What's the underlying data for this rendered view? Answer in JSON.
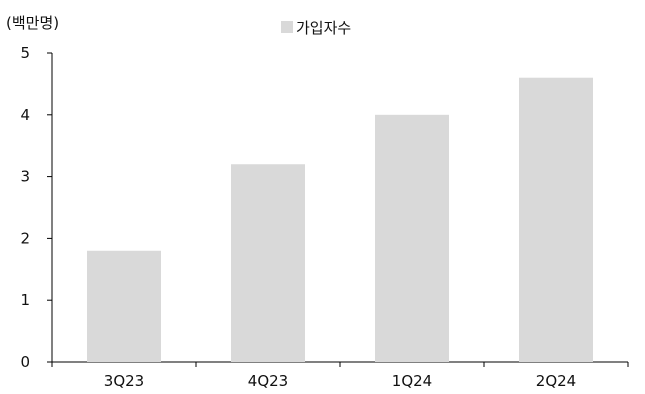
{
  "chart_data": {
    "type": "bar",
    "title": "",
    "xlabel": "",
    "ylabel": "",
    "unit_label": "(백만명)",
    "categories": [
      "3Q23",
      "4Q23",
      "1Q24",
      "2Q24"
    ],
    "series": [
      {
        "name": "가입자수",
        "values": [
          1.8,
          3.2,
          4.0,
          4.6
        ],
        "color": "#d9d9d9"
      }
    ],
    "ylim": [
      0,
      5
    ],
    "yticks": [
      0,
      1,
      2,
      3,
      4,
      5
    ],
    "grid": false,
    "legend_position": "top-center"
  }
}
